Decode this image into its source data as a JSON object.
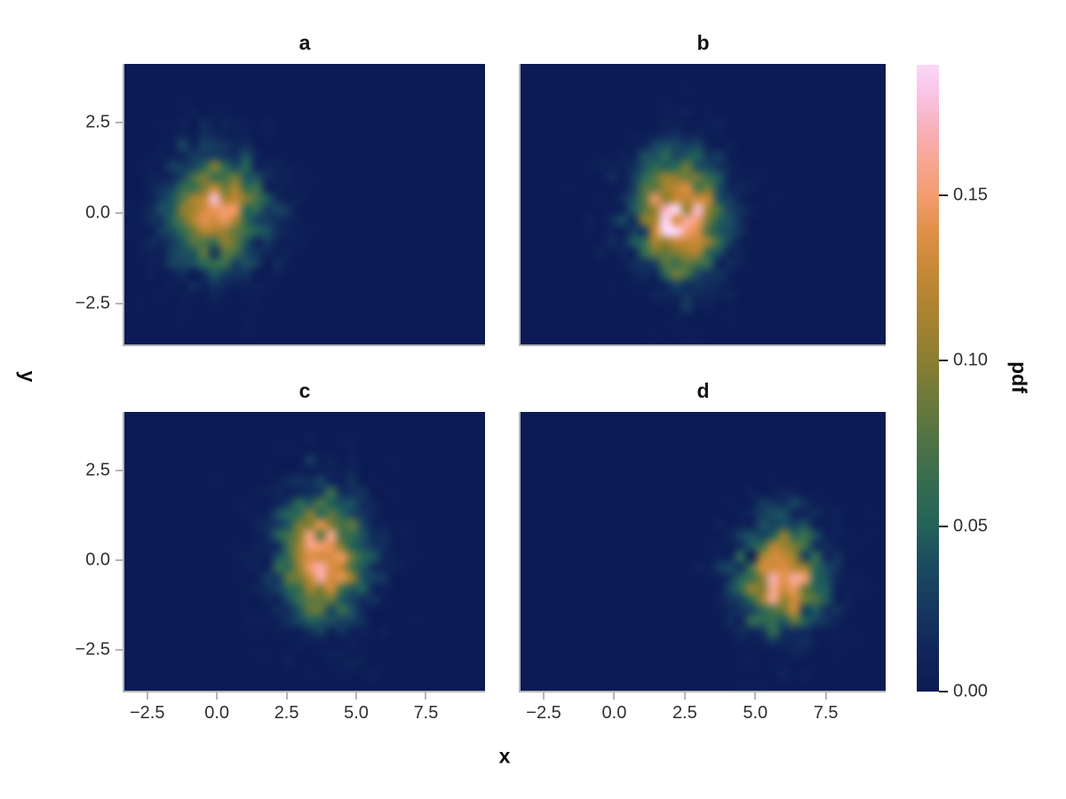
{
  "figure": {
    "background": "#ffffff",
    "x_label": "x",
    "y_label": "y"
  },
  "chart_data": {
    "type": "heatmap",
    "subplot_grid": "2x2",
    "description": "Four 2D histograms (binned samples of unit-variance Gaussians) sharing x/y axes and one colorbar of probability density",
    "x_range": [
      -3.32,
      9.62
    ],
    "y_range": [
      -3.63,
      4.12
    ],
    "bins": {
      "nx": 34,
      "ny": 26
    },
    "x_ticks": {
      "values": [
        -2.5,
        0,
        2.5,
        5,
        7.5
      ],
      "labels": [
        "−2.5",
        "0.0",
        "2.5",
        "5.0",
        "7.5"
      ]
    },
    "y_ticks": {
      "values": [
        2.5,
        0,
        -2.5
      ],
      "labels": [
        "2.5",
        "0.0",
        "−2.5"
      ]
    },
    "grid": "off",
    "panels": [
      {
        "label": "a",
        "mean": [
          0.0,
          0.05
        ],
        "sigma": [
          1.05,
          0.95
        ],
        "peak_bin_pdf": 0.152
      },
      {
        "label": "b",
        "mean": [
          2.3,
          -0.05
        ],
        "sigma": [
          0.95,
          1.0
        ],
        "peak_bin_pdf": 0.19
      },
      {
        "label": "c",
        "mean": [
          3.75,
          0.05
        ],
        "sigma": [
          1.0,
          1.05
        ],
        "peak_bin_pdf": 0.15
      },
      {
        "label": "d",
        "mean": [
          5.95,
          -0.45
        ],
        "sigma": [
          0.9,
          0.95
        ],
        "peak_bin_pdf": 0.155
      }
    ],
    "colorbar": {
      "label": "pdf",
      "position": "right",
      "vmin": 0.0,
      "vmax": 0.1893,
      "ticks": [
        {
          "value": 0.0,
          "label": "0.00"
        },
        {
          "value": 0.05,
          "label": "0.05"
        },
        {
          "value": 0.1,
          "label": "0.10"
        },
        {
          "value": 0.15,
          "label": "0.15"
        }
      ],
      "colormap_stops": [
        [
          0.0,
          "#0c1b54"
        ],
        [
          0.07,
          "#10265a"
        ],
        [
          0.14,
          "#163a5f"
        ],
        [
          0.2,
          "#1b4a61"
        ],
        [
          0.265,
          "#236359"
        ],
        [
          0.33,
          "#346c50"
        ],
        [
          0.4,
          "#4f7345"
        ],
        [
          0.47,
          "#6e7a39"
        ],
        [
          0.53,
          "#8c7e32"
        ],
        [
          0.6,
          "#a88331"
        ],
        [
          0.67,
          "#c58836"
        ],
        [
          0.735,
          "#e09048"
        ],
        [
          0.79,
          "#f29c6f"
        ],
        [
          0.85,
          "#f7a795"
        ],
        [
          0.9,
          "#f8b0bc"
        ],
        [
          0.95,
          "#f9c3e3"
        ],
        [
          1.0,
          "#fbd7f9"
        ]
      ]
    },
    "style": {
      "spine_color": "#b5b5b5",
      "tick_label_color": "#2f2f2f",
      "label_color": "#0a0a0a",
      "colorbar_tick_color": "#1c1c1c",
      "background_bin_color": "#0c1b54"
    }
  }
}
